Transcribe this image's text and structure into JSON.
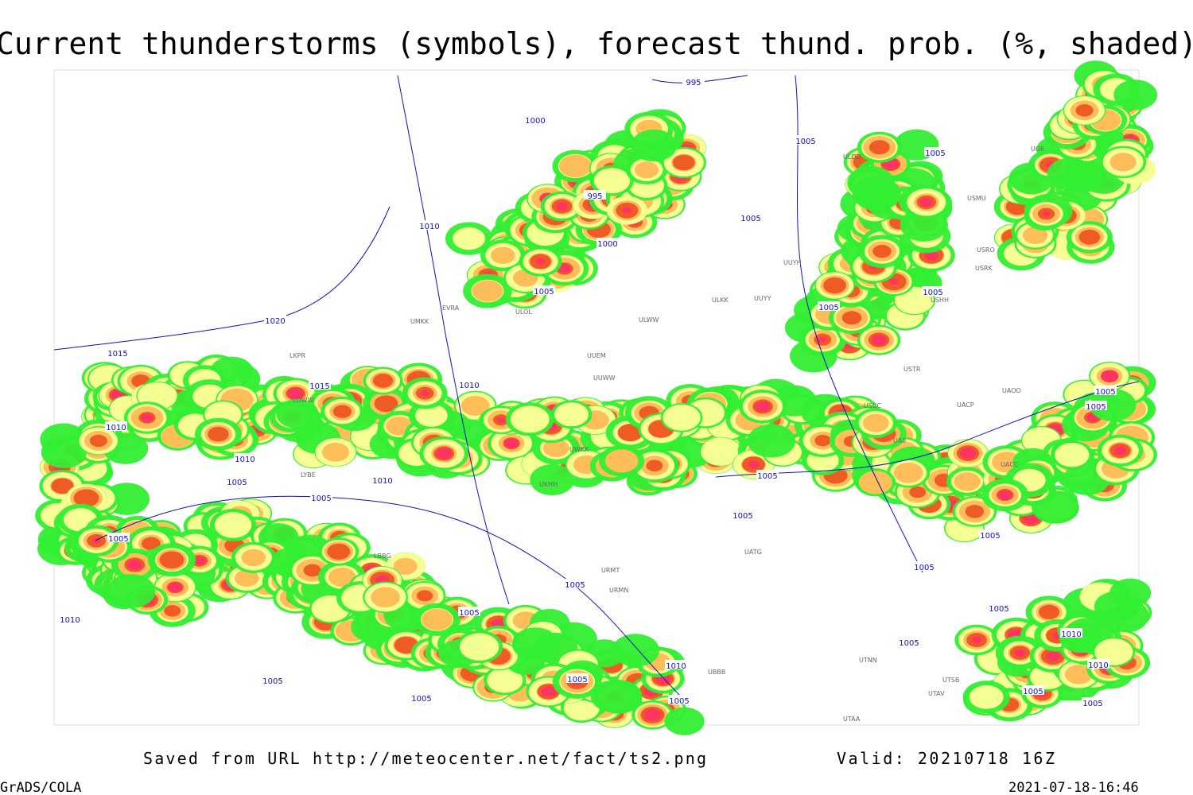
{
  "header": {
    "title": "Current thunderstorms (symbols), forecast thund. prob. (%, shaded)"
  },
  "footer": {
    "source": "Saved from URL http://meteocenter.net/fact/ts2.png",
    "valid": "Valid: 20210718 16Z",
    "credit": "GrADS/COLA",
    "timestamp": "2021-07-18-16:46"
  },
  "isobar_labels": [
    "995",
    "1000",
    "1005",
    "1005",
    "995",
    "1005",
    "1010",
    "1000",
    "1005",
    "1005",
    "1005",
    "1020",
    "1015",
    "1015",
    "1010",
    "1005",
    "1005",
    "1010",
    "1010",
    "1005",
    "1010",
    "1005",
    "1005",
    "1005",
    "1005",
    "1005",
    "1005",
    "1005",
    "1005",
    "1005",
    "1005",
    "1010",
    "1010",
    "1010",
    "1005",
    "1005",
    "1005",
    "1005",
    "1005",
    "1005",
    "1010"
  ],
  "stations": [
    "ULDD",
    "UOII",
    "USMU",
    "UUYH",
    "USRO",
    "USRK",
    "USHH",
    "UUYY",
    "ULKK",
    "ULWW",
    "ULOL",
    "UMKK",
    "EVRA",
    "LKPR",
    "USCC",
    "UAOO",
    "UACP",
    "UAII",
    "UACC",
    "UATG",
    "URMT",
    "URMN",
    "UTNN",
    "UTAA",
    "UTSB",
    "UTAV",
    "UBBB",
    "LBBG",
    "LOWW",
    "LYBE",
    "UKHH",
    "UUEM",
    "UUWW",
    "UWKK",
    "USTR"
  ]
}
